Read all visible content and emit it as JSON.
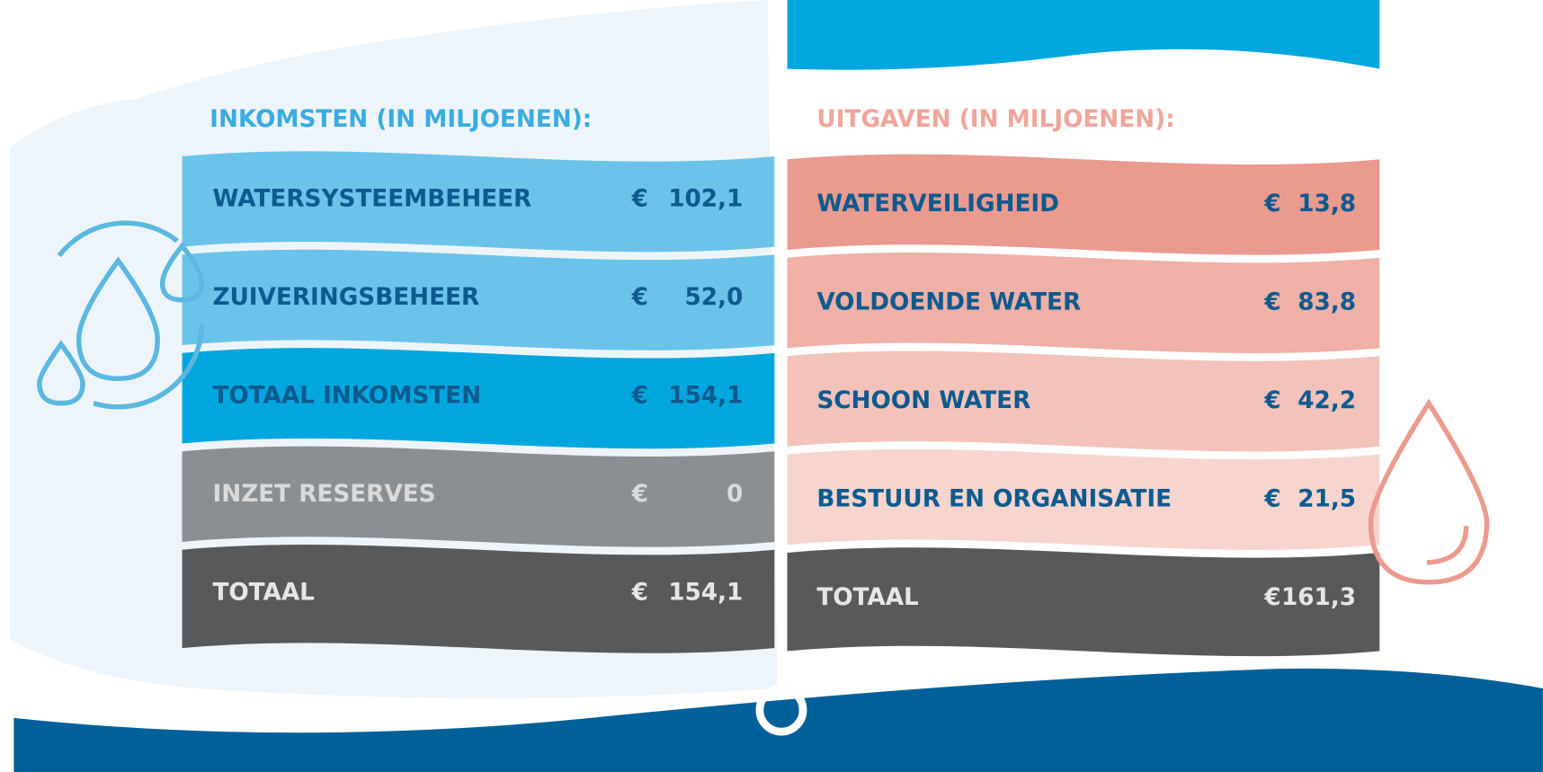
{
  "left": {
    "title": "INKOMSTEN (IN MILJOENEN):",
    "rows": [
      {
        "label": "WATERSYSTEEMBEHEER",
        "currency": "€",
        "amount": "102,1"
      },
      {
        "label": "ZUIVERINGSBEHEER",
        "currency": "€",
        "amount": "52,0"
      },
      {
        "label": "TOTAAL INKOMSTEN",
        "currency": "€",
        "amount": "154,1"
      },
      {
        "label": "INZET RESERVES",
        "currency": "€",
        "amount": "0"
      },
      {
        "label": "TOTAAL",
        "currency": "€",
        "amount": "154,1"
      }
    ]
  },
  "right": {
    "title": "UITGAVEN (IN MILJOENEN):",
    "rows": [
      {
        "label": "WATERVEILIGHEID",
        "currency": "€",
        "amount": "13,8"
      },
      {
        "label": "VOLDOENDE WATER",
        "currency": "€",
        "amount": "83,8"
      },
      {
        "label": "SCHOON WATER",
        "currency": "€",
        "amount": "42,2"
      },
      {
        "label": "BESTUUR EN ORGANISATIE",
        "currency": "€",
        "amount": "21,5"
      },
      {
        "label": "TOTAAL",
        "currency": "€",
        "amount": "161,3"
      }
    ]
  }
}
